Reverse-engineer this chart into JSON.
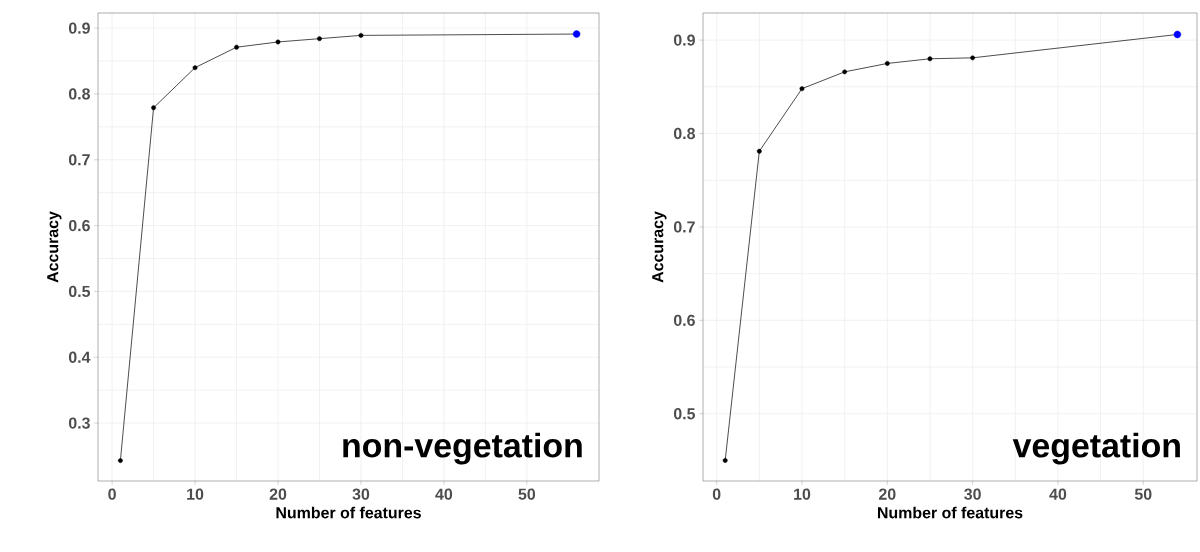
{
  "chart_data": [
    {
      "type": "line",
      "xlabel": "Number of features",
      "ylabel": "Accuracy",
      "annotations": [
        "non-vegetation"
      ],
      "xlim": [
        -1.7,
        58.7
      ],
      "ylim": [
        0.212,
        0.923
      ],
      "xticks": [
        0,
        10,
        20,
        30,
        40,
        50
      ],
      "yticks": [
        0.3,
        0.4,
        0.5,
        0.6,
        0.7,
        0.8,
        0.9
      ],
      "grid": true,
      "marker": "circle",
      "line_style": "solid",
      "series": [
        {
          "color": "#000000",
          "colors": [
            "#000000",
            "#000000",
            "#000000",
            "#000000",
            "#000000",
            "#000000",
            "#000000",
            "#0000ff"
          ],
          "x": [
            1,
            5,
            10,
            15,
            20,
            25,
            30,
            56
          ],
          "values": [
            0.243,
            0.779,
            0.84,
            0.871,
            0.879,
            0.884,
            0.889,
            0.891
          ]
        }
      ]
    },
    {
      "type": "line",
      "xlabel": "Number of features",
      "ylabel": "Accuracy",
      "annotations": [
        "vegetation"
      ],
      "xlim": [
        -1.6,
        56.3
      ],
      "ylim": [
        0.428,
        0.929
      ],
      "xticks": [
        0,
        10,
        20,
        30,
        40,
        50
      ],
      "yticks": [
        0.5,
        0.6,
        0.7,
        0.8,
        0.9
      ],
      "grid": true,
      "marker": "circle",
      "line_style": "solid",
      "series": [
        {
          "color": "#000000",
          "colors": [
            "#000000",
            "#000000",
            "#000000",
            "#000000",
            "#000000",
            "#000000",
            "#000000",
            "#0000ff"
          ],
          "x": [
            1,
            5,
            10,
            15,
            20,
            25,
            30,
            54
          ],
          "values": [
            0.45,
            0.781,
            0.848,
            0.866,
            0.875,
            0.88,
            0.881,
            0.906
          ]
        }
      ]
    }
  ]
}
